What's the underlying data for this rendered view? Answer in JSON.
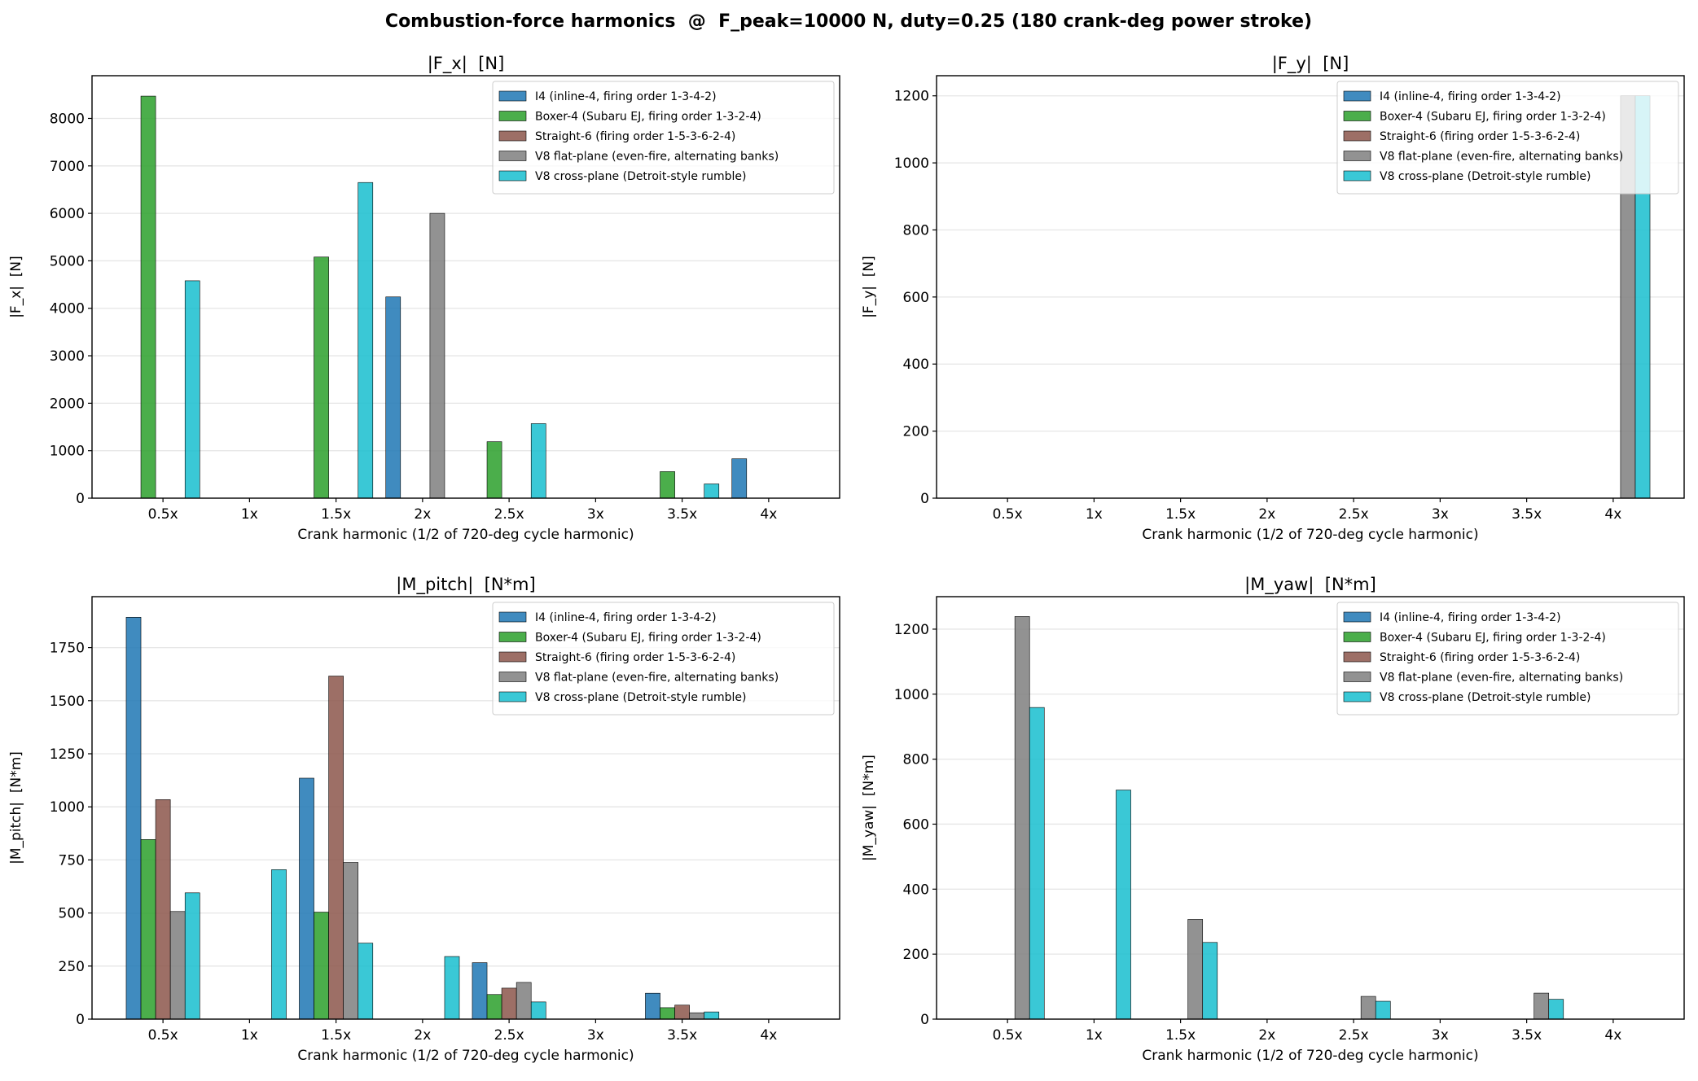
{
  "figure_title": "Combustion-force harmonics  @  F_peak=10000 N, duty=0.25 (180 crank-deg power stroke)",
  "chart_data": [
    {
      "type": "bar",
      "title": "|F_x|  [N]",
      "xlabel": "Crank harmonic (1/2 of 720-deg cycle harmonic)",
      "ylabel": "|F_x|  [N]",
      "categories": [
        "0.5x",
        "1x",
        "1.5x",
        "2x",
        "2.5x",
        "3x",
        "3.5x",
        "4x"
      ],
      "yticks": [
        0,
        1000,
        2000,
        3000,
        4000,
        5000,
        6000,
        7000,
        8000
      ],
      "ylim": [
        0,
        8900
      ],
      "grid": "y",
      "legend": "top-right",
      "series": [
        {
          "name": "I4 (inline-4, firing order 1-3-4-2)",
          "values": [
            0,
            0,
            0,
            4240,
            0,
            0,
            0,
            830
          ]
        },
        {
          "name": "Boxer-4 (Subaru EJ, firing order 1-3-2-4)",
          "values": [
            8470,
            0,
            5080,
            0,
            1190,
            0,
            560,
            0
          ]
        },
        {
          "name": "Straight-6 (firing order 1-5-3-6-2-4)",
          "values": [
            0,
            0,
            0,
            0,
            0,
            0,
            0,
            0
          ]
        },
        {
          "name": "V8 flat-plane (even-fire, alternating banks)",
          "values": [
            0,
            0,
            0,
            6000,
            0,
            0,
            0,
            0
          ]
        },
        {
          "name": "V8 cross-plane (Detroit-style rumble)",
          "values": [
            4580,
            0,
            6650,
            0,
            1570,
            0,
            300,
            0
          ]
        }
      ]
    },
    {
      "type": "bar",
      "title": "|F_y|  [N]",
      "xlabel": "Crank harmonic (1/2 of 720-deg cycle harmonic)",
      "ylabel": "|F_y|  [N]",
      "categories": [
        "0.5x",
        "1x",
        "1.5x",
        "2x",
        "2.5x",
        "3x",
        "3.5x",
        "4x"
      ],
      "yticks": [
        0,
        200,
        400,
        600,
        800,
        1000,
        1200
      ],
      "ylim": [
        0,
        1260
      ],
      "grid": "y",
      "legend": "top-right",
      "series": [
        {
          "name": "I4 (inline-4, firing order 1-3-4-2)",
          "values": [
            0,
            0,
            0,
            0,
            0,
            0,
            0,
            0
          ]
        },
        {
          "name": "Boxer-4 (Subaru EJ, firing order 1-3-2-4)",
          "values": [
            0,
            0,
            0,
            0,
            0,
            0,
            0,
            0
          ]
        },
        {
          "name": "Straight-6 (firing order 1-5-3-6-2-4)",
          "values": [
            0,
            0,
            0,
            0,
            0,
            0,
            0,
            0
          ]
        },
        {
          "name": "V8 flat-plane (even-fire, alternating banks)",
          "values": [
            0,
            0,
            0,
            0,
            0,
            0,
            0,
            1200
          ]
        },
        {
          "name": "V8 cross-plane (Detroit-style rumble)",
          "values": [
            0,
            0,
            0,
            0,
            0,
            0,
            0,
            1200
          ]
        }
      ]
    },
    {
      "type": "bar",
      "title": "|M_pitch|  [N*m]",
      "xlabel": "Crank harmonic (1/2 of 720-deg cycle harmonic)",
      "ylabel": "|M_pitch|  [N*m]",
      "categories": [
        "0.5x",
        "1x",
        "1.5x",
        "2x",
        "2.5x",
        "3x",
        "3.5x",
        "4x"
      ],
      "yticks": [
        0,
        250,
        500,
        750,
        1000,
        1250,
        1500,
        1750
      ],
      "ylim": [
        0,
        1990
      ],
      "grid": "y",
      "legend": "top-right",
      "series": [
        {
          "name": "I4 (inline-4, firing order 1-3-4-2)",
          "values": [
            1893,
            0,
            1135,
            0,
            266,
            0,
            122,
            0
          ]
        },
        {
          "name": "Boxer-4 (Subaru EJ, firing order 1-3-2-4)",
          "values": [
            846,
            0,
            504,
            0,
            116,
            0,
            54,
            0
          ]
        },
        {
          "name": "Straight-6 (firing order 1-5-3-6-2-4)",
          "values": [
            1034,
            0,
            1616,
            0,
            146,
            0,
            66,
            0
          ]
        },
        {
          "name": "V8 flat-plane (even-fire, alternating banks)",
          "values": [
            507,
            0,
            738,
            0,
            173,
            0,
            30,
            0
          ]
        },
        {
          "name": "V8 cross-plane (Detroit-style rumble)",
          "values": [
            595,
            704,
            358,
            295,
            81,
            0,
            34,
            0
          ]
        }
      ]
    },
    {
      "type": "bar",
      "title": "|M_yaw|  [N*m]",
      "xlabel": "Crank harmonic (1/2 of 720-deg cycle harmonic)",
      "ylabel": "|M_yaw|  [N*m]",
      "categories": [
        "0.5x",
        "1x",
        "1.5x",
        "2x",
        "2.5x",
        "3x",
        "3.5x",
        "4x"
      ],
      "yticks": [
        0,
        200,
        400,
        600,
        800,
        1000,
        1200
      ],
      "ylim": [
        0,
        1300
      ],
      "grid": "y",
      "legend": "top-right",
      "series": [
        {
          "name": "I4 (inline-4, firing order 1-3-4-2)",
          "values": [
            0,
            0,
            0,
            0,
            0,
            0,
            0,
            0
          ]
        },
        {
          "name": "Boxer-4 (Subaru EJ, firing order 1-3-2-4)",
          "values": [
            0,
            0,
            0,
            0,
            0,
            0,
            0,
            0
          ]
        },
        {
          "name": "Straight-6 (firing order 1-5-3-6-2-4)",
          "values": [
            0,
            0,
            0,
            0,
            0,
            0,
            0,
            0
          ]
        },
        {
          "name": "V8 flat-plane (even-fire, alternating banks)",
          "values": [
            1239,
            0,
            307,
            0,
            70,
            0,
            80,
            0
          ]
        },
        {
          "name": "V8 cross-plane (Detroit-style rumble)",
          "values": [
            959,
            705,
            236,
            0,
            55,
            0,
            61,
            0
          ]
        }
      ]
    }
  ],
  "colors": [
    "#1f77b4",
    "#2ca02c",
    "#8c564b",
    "#7f7f7f",
    "#17becf"
  ]
}
